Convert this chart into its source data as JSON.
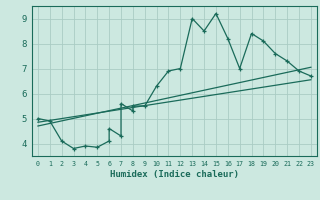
{
  "title": "",
  "xlabel": "Humidex (Indice chaleur)",
  "xlim": [
    -0.5,
    23.5
  ],
  "ylim": [
    3.5,
    9.5
  ],
  "xticks": [
    0,
    1,
    2,
    3,
    4,
    5,
    6,
    7,
    8,
    9,
    10,
    11,
    12,
    13,
    14,
    15,
    16,
    17,
    18,
    19,
    20,
    21,
    22,
    23
  ],
  "yticks": [
    4,
    5,
    6,
    7,
    8,
    9
  ],
  "bg_color": "#cce8e0",
  "grid_color": "#aaccC4",
  "line_color": "#1a6b5a",
  "series1_x": [
    0,
    1,
    2,
    3,
    4,
    5,
    6,
    6,
    7,
    7,
    8,
    8,
    9,
    10,
    11,
    12,
    13,
    14,
    15,
    16,
    17,
    18,
    19,
    20,
    21,
    22,
    23
  ],
  "series1_y": [
    5.0,
    4.9,
    4.1,
    3.8,
    3.9,
    3.85,
    4.1,
    4.6,
    4.3,
    5.6,
    5.3,
    5.5,
    5.5,
    6.3,
    6.9,
    7.0,
    9.0,
    8.5,
    9.2,
    8.2,
    7.0,
    8.4,
    8.1,
    7.6,
    7.3,
    6.9,
    6.7
  ],
  "series2_x": [
    0,
    23
  ],
  "series2_y": [
    4.85,
    6.55
  ],
  "series3_x": [
    0,
    23
  ],
  "series3_y": [
    4.7,
    7.05
  ]
}
